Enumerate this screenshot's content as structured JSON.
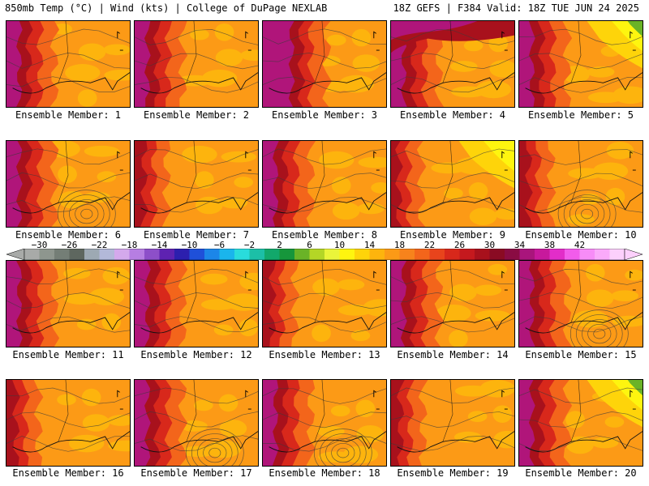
{
  "header": {
    "left_title": "850mb Temp (°C) | Wind (kts) | College of DuPage NEXLAB",
    "right_title": "18Z GEFS | F384 Valid: 18Z TUE JUN 24 2025"
  },
  "member_label_prefix": "Ensemble Member: ",
  "panels": [
    {
      "member": "1",
      "theme": "hot_west"
    },
    {
      "member": "2",
      "theme": "hot_west"
    },
    {
      "member": "3",
      "theme": "very_hot_west"
    },
    {
      "member": "4",
      "theme": "hot_north"
    },
    {
      "member": "5",
      "theme": "hot_west_green_ne"
    },
    {
      "member": "6",
      "theme": "hot_west_low"
    },
    {
      "member": "7",
      "theme": "warm"
    },
    {
      "member": "8",
      "theme": "hot_west"
    },
    {
      "member": "9",
      "theme": "yellow_ne"
    },
    {
      "member": "10",
      "theme": "warm_low"
    },
    {
      "member": "11",
      "theme": "hot_west"
    },
    {
      "member": "12",
      "theme": "hot_west"
    },
    {
      "member": "13",
      "theme": "warm"
    },
    {
      "member": "14",
      "theme": "hot_west"
    },
    {
      "member": "15",
      "theme": "hot_west_low"
    },
    {
      "member": "16",
      "theme": "warm"
    },
    {
      "member": "17",
      "theme": "hot_west_low"
    },
    {
      "member": "18",
      "theme": "hot_west_low"
    },
    {
      "member": "19",
      "theme": "warm"
    },
    {
      "member": "20",
      "theme": "hot_west_green_ne"
    }
  ],
  "colorbar": {
    "labels": [
      "−30",
      "−26",
      "−22",
      "−18",
      "−14",
      "−10",
      "−6",
      "−2",
      "2",
      "6",
      "10",
      "14",
      "18",
      "22",
      "26",
      "30",
      "34",
      "38",
      "42"
    ],
    "colors": [
      "#a8aaa8",
      "#8e968e",
      "#747e76",
      "#5e675f",
      "#9da9b3",
      "#b3b9d9",
      "#d4a9ec",
      "#b67ee2",
      "#8d4fc9",
      "#5e22b1",
      "#2c1fae",
      "#1f50d9",
      "#1c86e8",
      "#1ab5ec",
      "#29dcdc",
      "#1cbfa7",
      "#12a86b",
      "#16963b",
      "#6ab327",
      "#b4d626",
      "#eaf53a",
      "#fef50f",
      "#fed40a",
      "#fdb40d",
      "#fc9a16",
      "#f7831c",
      "#f3651b",
      "#e8441c",
      "#d8281b",
      "#c5191e",
      "#a8111c",
      "#8a0b23",
      "#8a0c43",
      "#a9157c",
      "#c7199c",
      "#e22dc9",
      "#f25ceb",
      "#f78cf7",
      "#faaafa",
      "#fcd0fc"
    ],
    "colors_meaning": "fill colors for 850mb temperature, -32 to 42 °C in 2-degree steps"
  },
  "map_colors": {
    "magenta": "#b0157a",
    "purple": "#8c0f2c",
    "dark_red": "#a8111c",
    "red": "#d8281b",
    "orange_red": "#f3651b",
    "orange": "#fc9a16",
    "light_orange": "#fdb40d",
    "yellow": "#fed40a",
    "light_yellow": "#fef50f",
    "green": "#6ab327"
  }
}
